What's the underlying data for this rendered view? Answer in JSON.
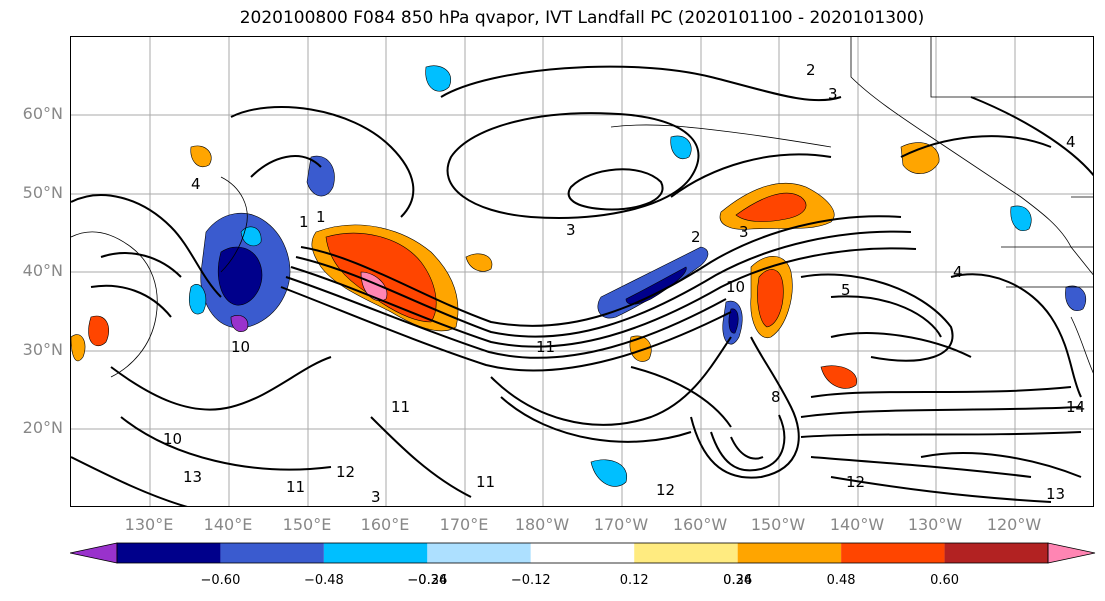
{
  "title": "2020100800 F084 850 hPa qvapor, IVT Landfall PC (2020101100 - 2020101300)",
  "lat_labels": [
    "60°N",
    "50°N",
    "40°N",
    "30°N",
    "20°N"
  ],
  "lon_labels": [
    "130°E",
    "140°E",
    "150°E",
    "160°E",
    "170°E",
    "180°W",
    "170°W",
    "160°W",
    "150°W",
    "140°W",
    "130°W",
    "120°W"
  ],
  "colorbar": {
    "colors": [
      "#9932CC",
      "#00008B",
      "#3A5BCF",
      "#00BFFF",
      "#ADE0FF",
      "#FFFFFF",
      "#FFEB80",
      "#FFA500",
      "#FF4500",
      "#B22222",
      "#FF85B3"
    ],
    "tick_labels": [
      "−0.60",
      "−0.48",
      "−0.36",
      "−0.24",
      "−0.12",
      "0.12",
      "0.24",
      "0.36",
      "0.48",
      "0.60"
    ]
  },
  "contour_labels": [
    "2",
    "3",
    "4",
    "4",
    "1",
    "3",
    "3",
    "2",
    "4",
    "5",
    "10",
    "11",
    "11",
    "10",
    "10",
    "13",
    "11",
    "12",
    "3",
    "11",
    "12",
    "8",
    "12",
    "14",
    "13",
    "1"
  ]
}
